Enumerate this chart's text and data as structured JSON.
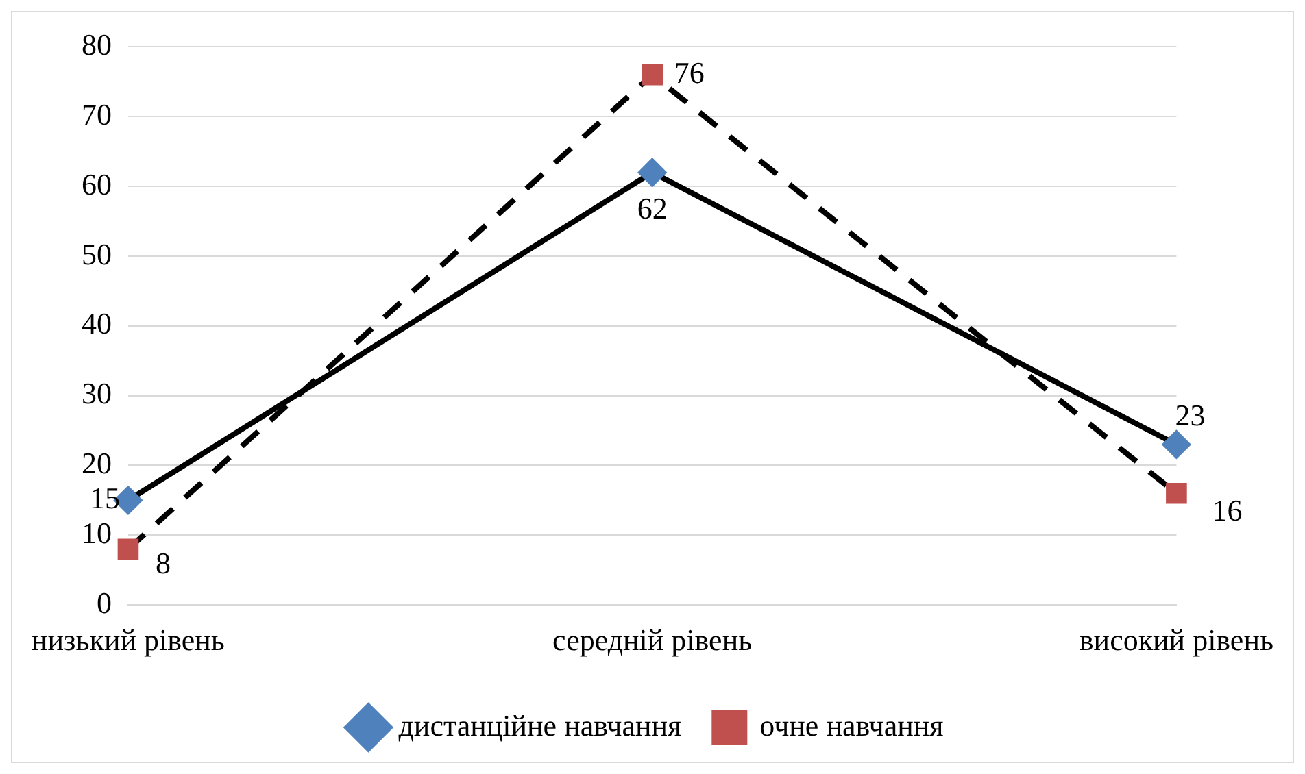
{
  "chart_data": {
    "type": "line",
    "categories": [
      "низький рівень",
      "середній рівень",
      "високий рівень"
    ],
    "series": [
      {
        "name": "дистанційне навчання",
        "color": "#4f81bd",
        "values": [
          15,
          62,
          23
        ],
        "marker": "diamond",
        "line_style": "solid"
      },
      {
        "name": "очне навчання",
        "color": "#c0504d",
        "values": [
          8,
          76,
          16
        ],
        "marker": "square",
        "line_style": "dashed"
      }
    ],
    "ylim": [
      0,
      80
    ],
    "yticks": [
      0,
      10,
      20,
      30,
      40,
      50,
      60,
      70,
      80
    ],
    "grid": "y",
    "legend": "bottom",
    "data_labels": true
  }
}
